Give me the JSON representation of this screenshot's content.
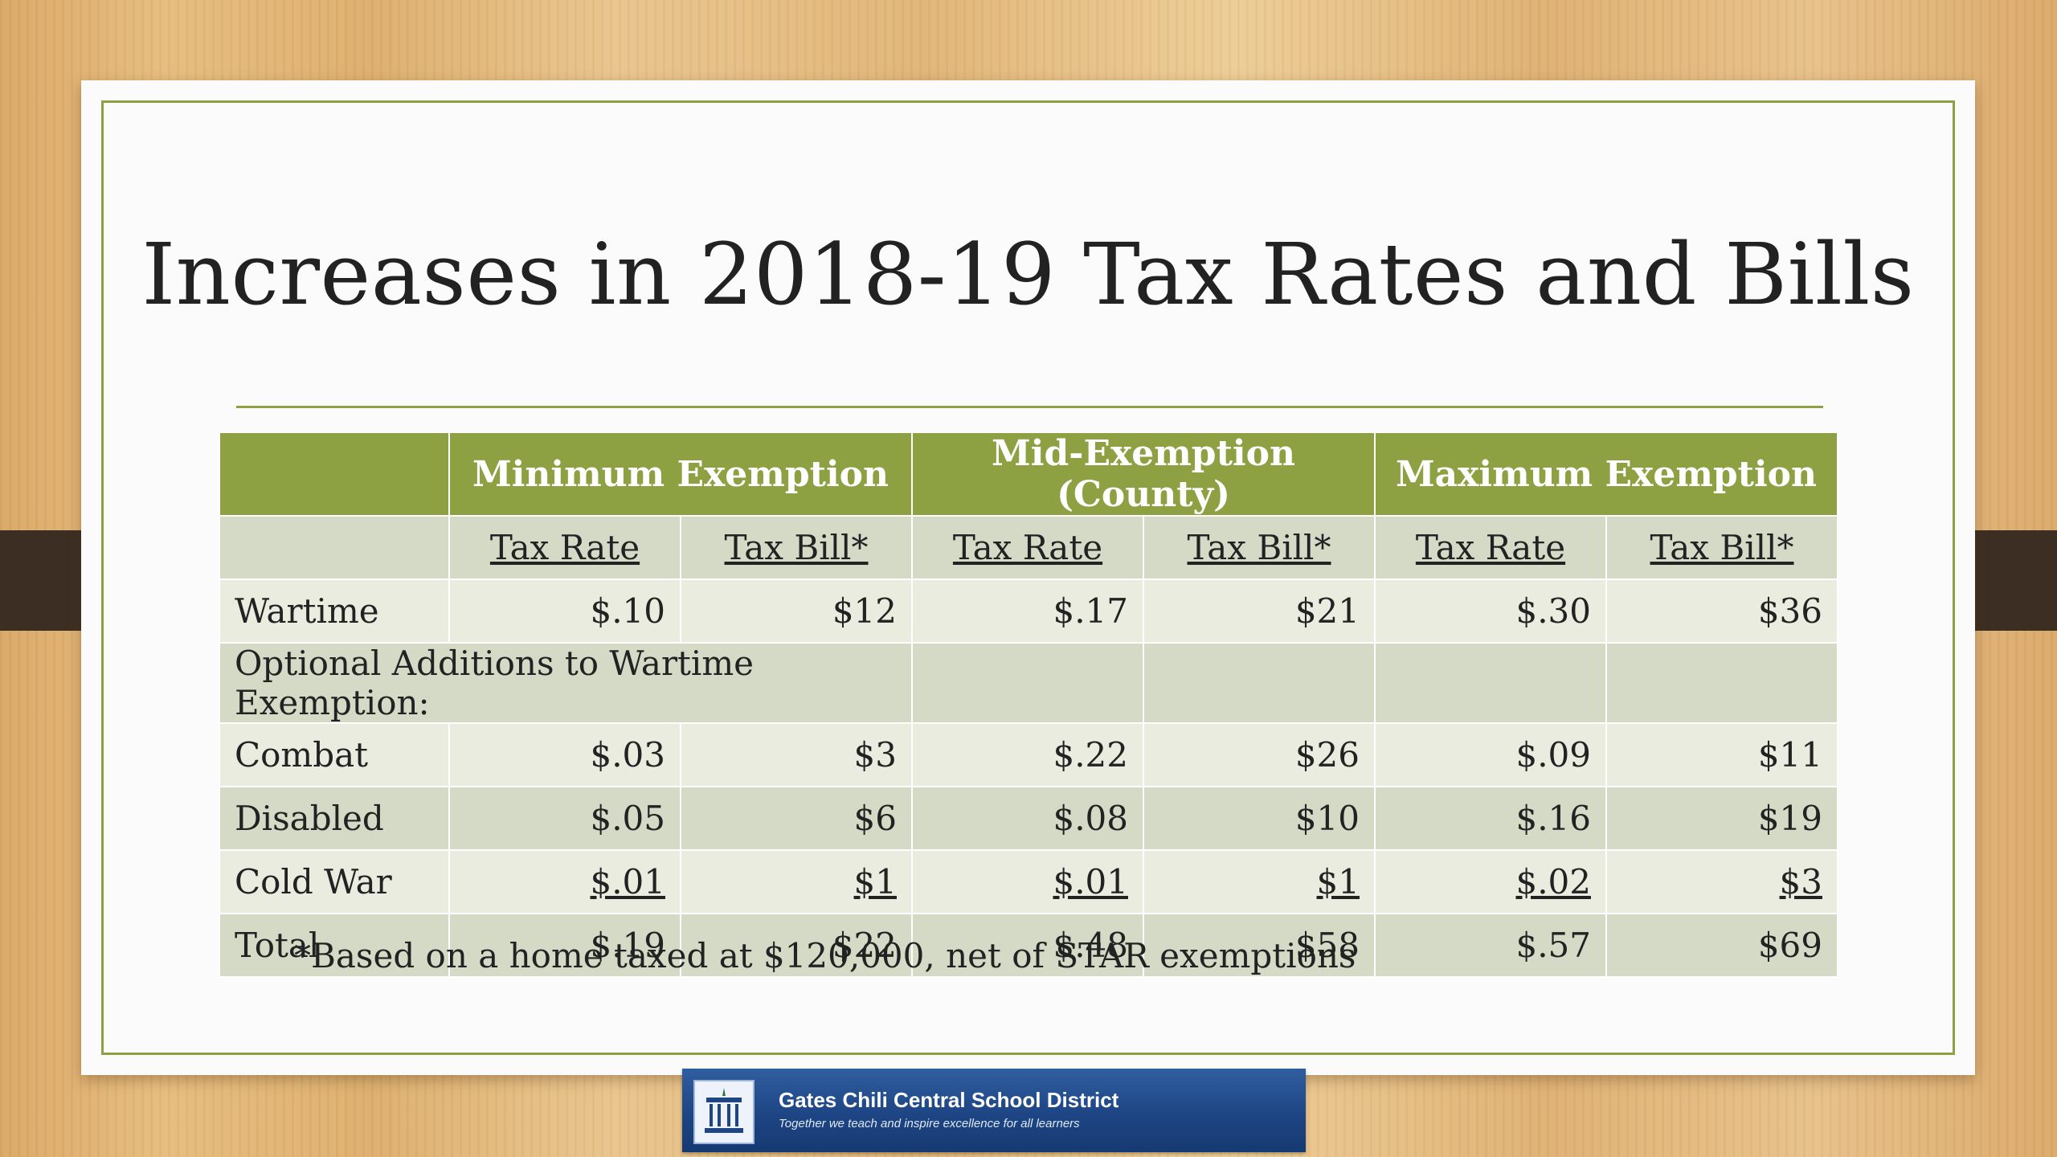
{
  "slide": {
    "title": "Increases in 2018-19 Tax Rates and Bills",
    "footnote": "*Based on a home taxed at $120,000, net of STAR exemptions"
  },
  "table": {
    "groups": [
      "Minimum Exemption",
      "Mid-Exemption (County)",
      "Maximum Exemption"
    ],
    "subheaders": [
      "Tax Rate",
      "Tax Bill*",
      "Tax Rate",
      "Tax Bill*",
      "Tax Rate",
      "Tax Bill*"
    ],
    "rows": [
      {
        "label": "Wartime",
        "values": [
          "$.10",
          "$12",
          "$.17",
          "$21",
          "$.30",
          "$36"
        ]
      },
      {
        "label": "Optional Additions to Wartime Exemption:"
      },
      {
        "label": "Combat",
        "values": [
          "$.03",
          "$3",
          "$.22",
          "$26",
          "$.09",
          "$11"
        ]
      },
      {
        "label": "Disabled",
        "values": [
          "$.05",
          "$6",
          "$.08",
          "$10",
          "$.16",
          "$19"
        ]
      },
      {
        "label": "Cold War",
        "values": [
          "$.01",
          "$1",
          "$.01",
          "$1",
          "$.02",
          "$3"
        ]
      },
      {
        "label": "Total",
        "values": [
          "$.19",
          "$22",
          "$.48",
          "$58",
          "$.57",
          "$69"
        ]
      }
    ]
  },
  "logo": {
    "name": "Gates Chili Central School District",
    "tagline": "Together we teach and inspire excellence for all learners"
  },
  "colors": {
    "accent_green": "#8da042",
    "row_light": "#e9ecdf",
    "row_dark": "#d4dac6",
    "logo_blue": "#1e4584"
  }
}
